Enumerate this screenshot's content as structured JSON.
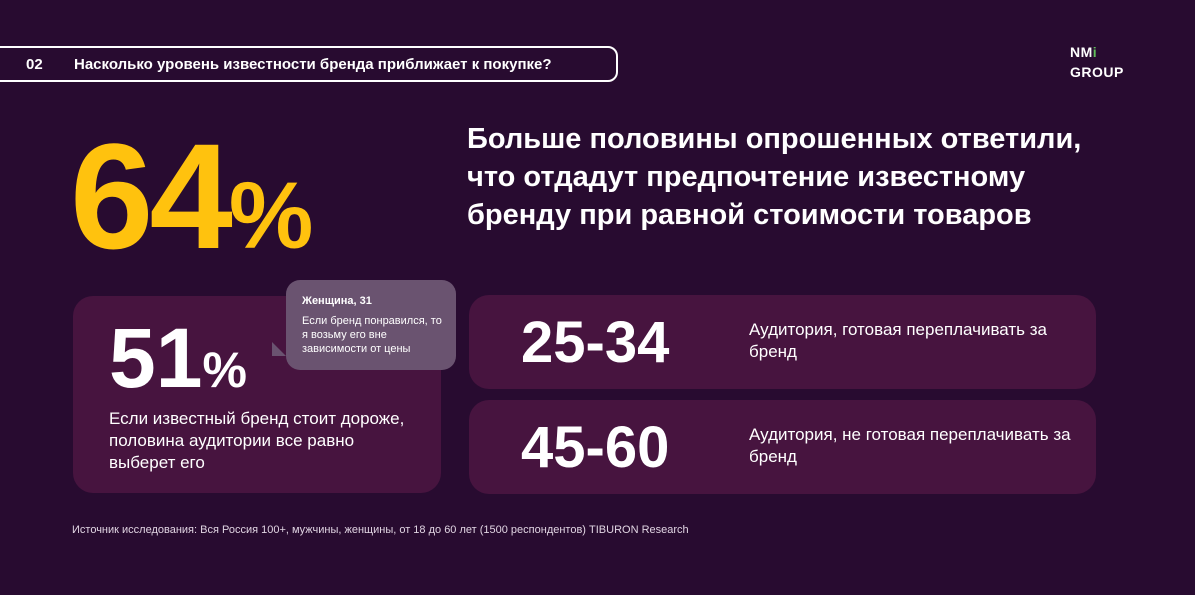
{
  "header": {
    "number": "02",
    "question": "Насколько уровень известности бренда приближает к покупке?"
  },
  "logo": {
    "line1": "NM",
    "mark": "i",
    "line2": "GROUP"
  },
  "main": {
    "big_value": "64",
    "big_unit": "%",
    "headline": "Больше половины опрошенных ответили, что отдадут предпочтение известному бренду при равной стоимости товаров"
  },
  "card": {
    "value": "51",
    "unit": "%",
    "text": "Если известный бренд стоит дороже, половина аудитории все равно выберет его"
  },
  "quote": {
    "author": "Женщина, 31",
    "text": "Если бренд понравился, то я возьму его вне зависимости от цены"
  },
  "rows": [
    {
      "range": "25-34",
      "text": "Аудитория, готовая переплачивать за бренд"
    },
    {
      "range": "45-60",
      "text": "Аудитория, не готовая переплачивать за бренд"
    }
  ],
  "footer": "Источник исследования: Вся Россия 100+, мужчины, женщины, от 18 до 60 лет (1500 респондентов) TIBURON Research"
}
